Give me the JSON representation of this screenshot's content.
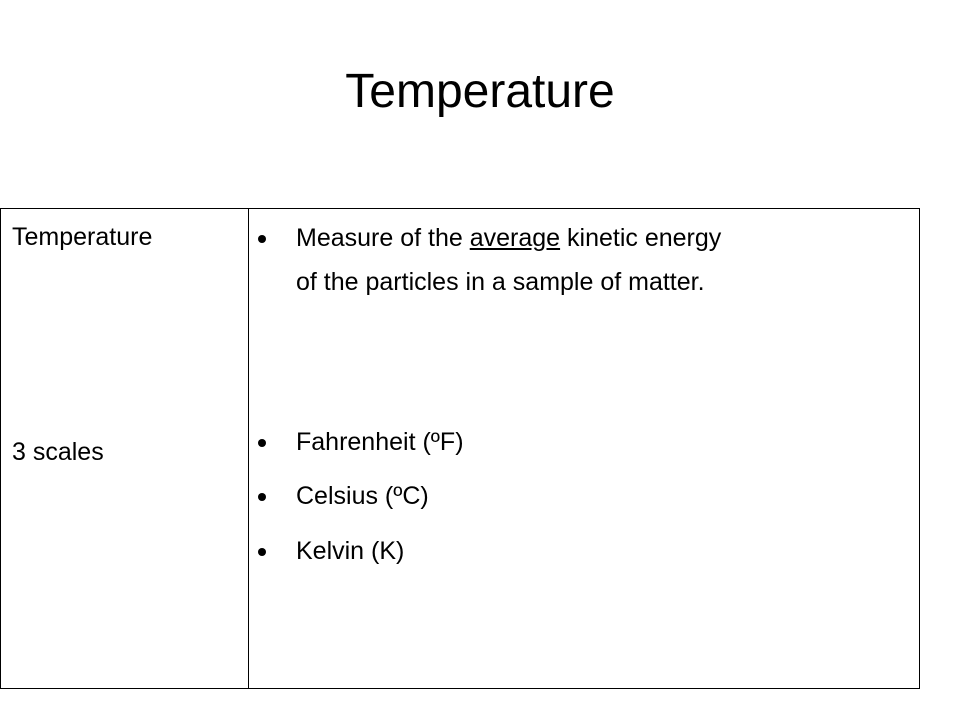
{
  "title": "Temperature",
  "table": {
    "left": [
      "Temperature",
      "3 scales"
    ],
    "bullets": [
      {
        "lines": [
          {
            "before": "Measure of the ",
            "underlined": "average",
            "after": " kinetic energy"
          },
          {
            "text": "of the particles in a sample of matter."
          }
        ]
      },
      {
        "text": "Fahrenheit (ºF)"
      },
      {
        "text": "Celsius (ºC)"
      },
      {
        "text": "Kelvin (K)"
      }
    ]
  }
}
